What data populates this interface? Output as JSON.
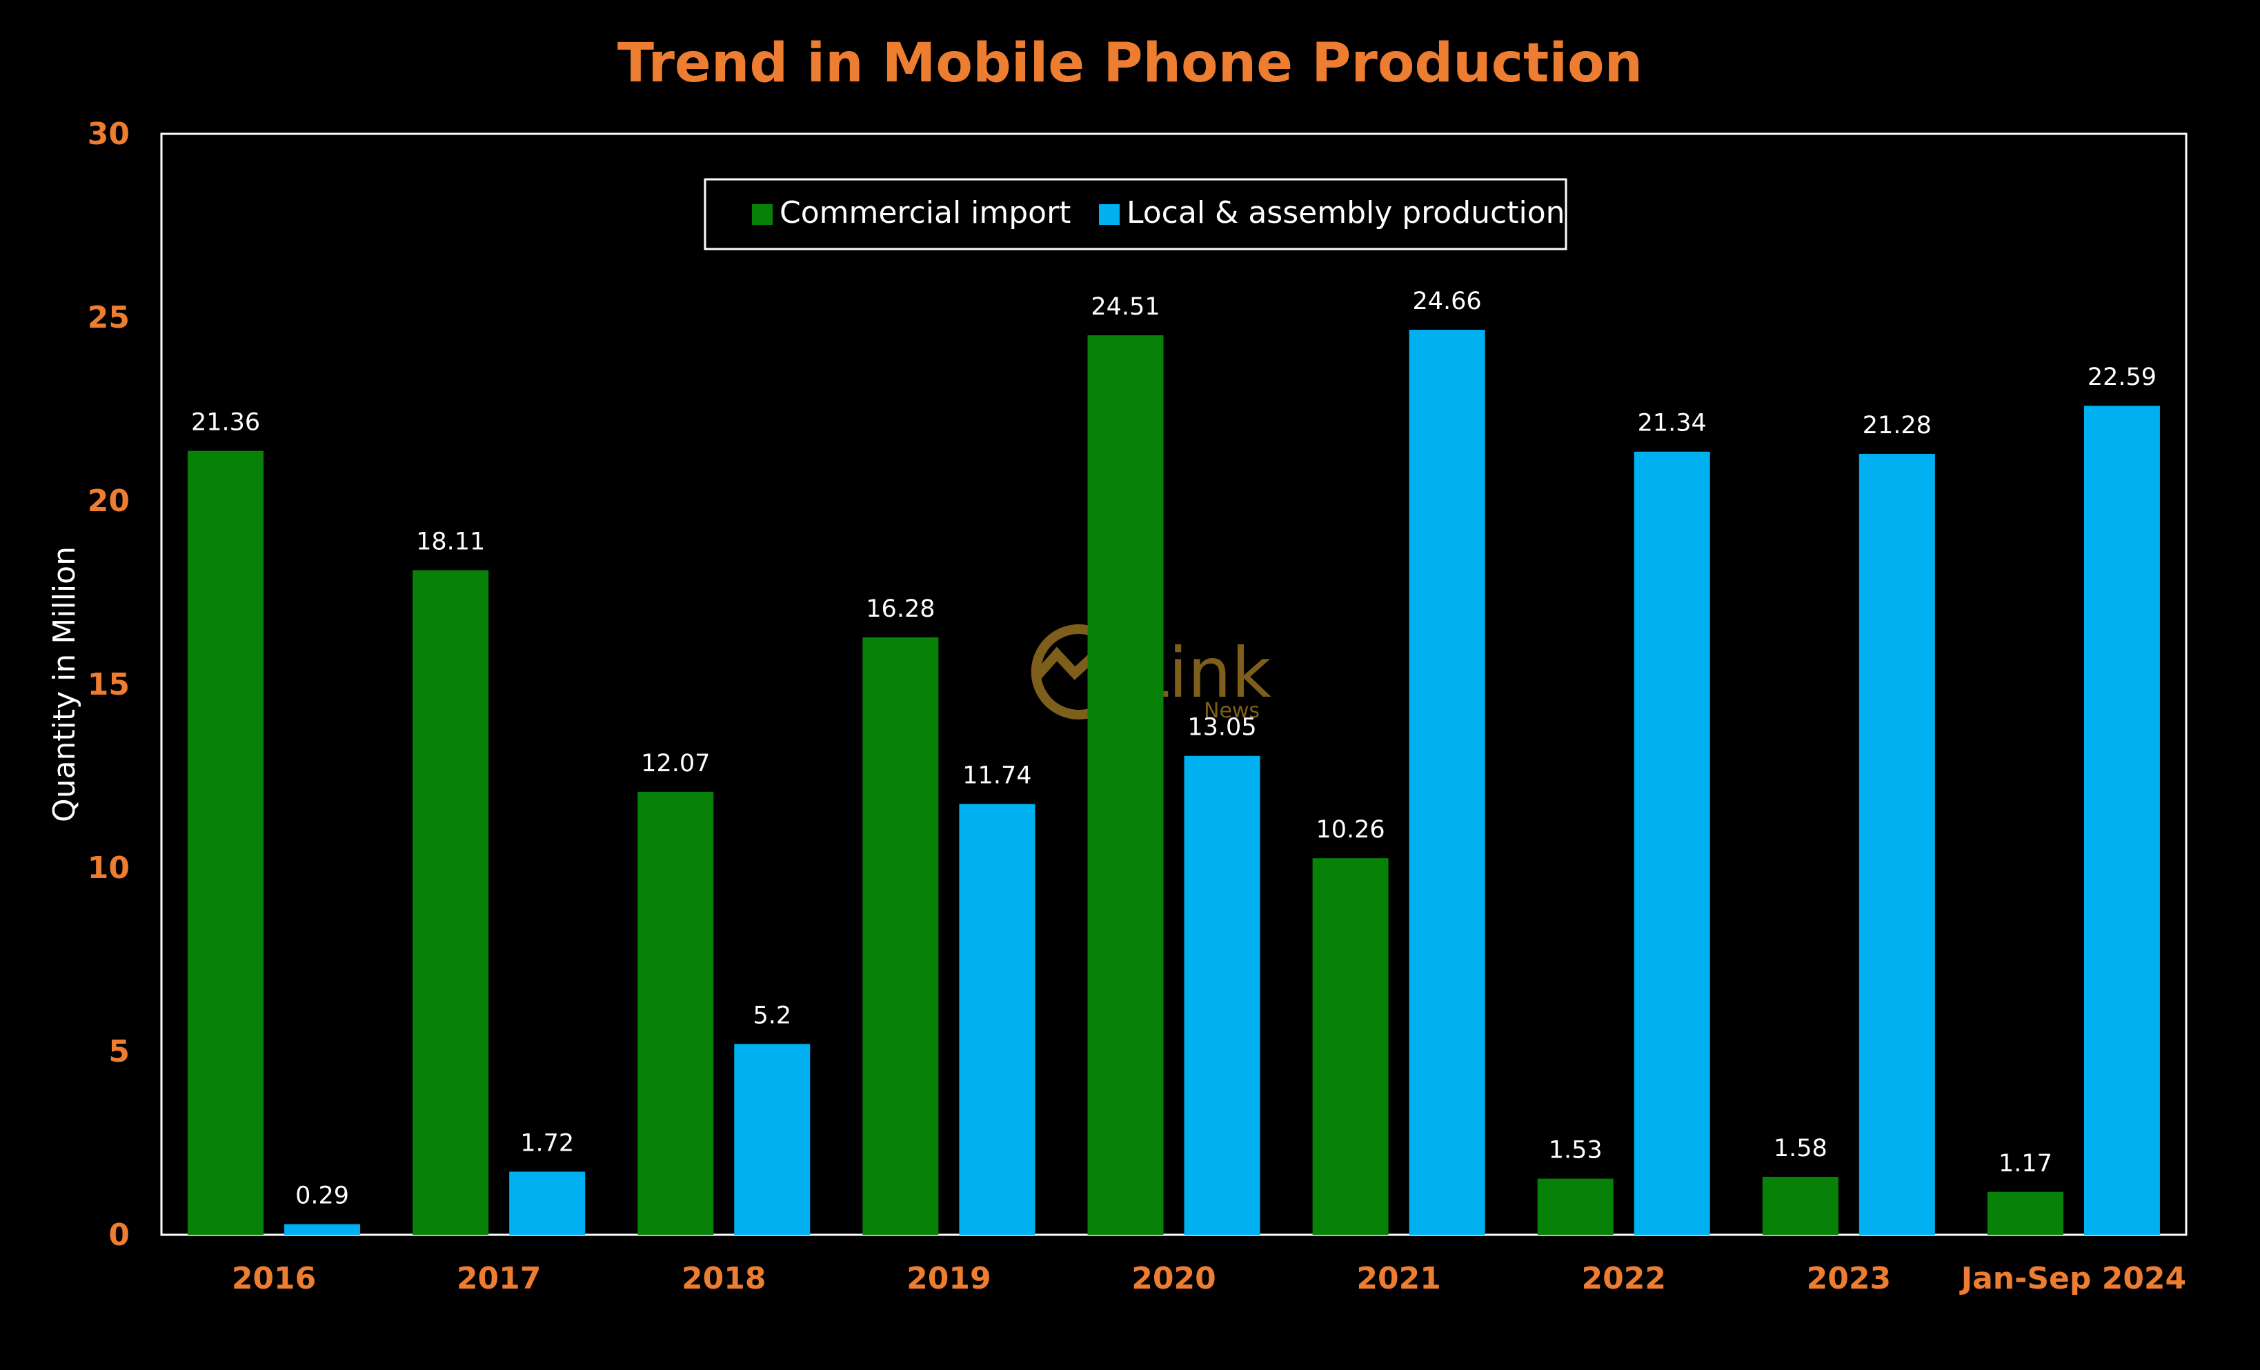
{
  "chart_data": {
    "type": "bar",
    "title": "Trend in Mobile Phone Production",
    "xlabel": "",
    "ylabel": "Quantity in Million",
    "ylim": [
      0,
      30
    ],
    "yticks": [
      0,
      5,
      10,
      15,
      20,
      25,
      30
    ],
    "categories": [
      "2016",
      "2017",
      "2018",
      "2019",
      "2020",
      "2021",
      "2022",
      "2023",
      "Jan-Sep 2024"
    ],
    "series": [
      {
        "name": "Commercial import",
        "color": "#078107",
        "values": [
          21.36,
          18.11,
          12.07,
          16.28,
          24.51,
          10.26,
          1.53,
          1.58,
          1.17
        ]
      },
      {
        "name": "Local & assembly production",
        "color": "#00B0F0",
        "values": [
          0.29,
          1.72,
          5.2,
          11.74,
          13.05,
          24.66,
          21.34,
          21.28,
          22.59
        ]
      }
    ],
    "data_labels": true,
    "grid": false,
    "legend_position": "top-center"
  },
  "style": {
    "background": "#000000",
    "accent": "#ED7D31",
    "text": "#FFFFFF",
    "axis_line": "#FFFFFF"
  },
  "watermark": {
    "brand": "Link",
    "sub": "News",
    "color": "#8B6A1E",
    "icon": "chart-circle-logo-icon"
  }
}
